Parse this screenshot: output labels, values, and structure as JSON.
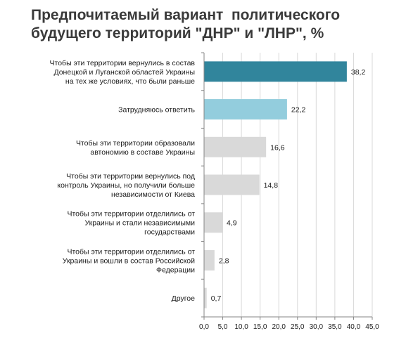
{
  "title_lines": [
    "Предпочитаемый вариант  политического",
    "будущего территорий \"ДНР\" и \"ЛНР\", %"
  ],
  "chart_data": {
    "type": "bar",
    "orientation": "horizontal",
    "title": "Предпочитаемый вариант  политического будущего территорий \"ДНР\" и \"ЛНР\", %",
    "categories": [
      [
        "Чтобы эти территории вернулись в состав",
        "Донецкой и Луганской областей Украины",
        "на тех же условиях, что были раньше"
      ],
      [
        "Затрудняюсь ответить"
      ],
      [
        "Чтобы эти территории образовали",
        "автономию в составе Украины"
      ],
      [
        "Чтобы эти территории вернулись под",
        "контроль Украины, но получили больше",
        "независимости от Киева"
      ],
      [
        "Чтобы эти территории отделились от",
        "Украины и стали независимыми",
        "государствами"
      ],
      [
        "Чтобы эти территории отделились от",
        "Украины и вошли в состав Российской",
        "Федерации"
      ],
      [
        "Другое"
      ]
    ],
    "values": [
      38.2,
      22.2,
      16.6,
      14.8,
      4.9,
      2.8,
      0.7
    ],
    "value_labels": [
      "38,2",
      "22,2",
      "16,6",
      "14,8",
      "4,9",
      "2,8",
      "0,7"
    ],
    "bar_colors": [
      "#31859c",
      "#93cddd",
      "#d9d9d9",
      "#d9d9d9",
      "#d9d9d9",
      "#d9d9d9",
      "#d9d9d9"
    ],
    "xlim": [
      0,
      45
    ],
    "xticks": [
      0,
      5,
      10,
      15,
      20,
      25,
      30,
      35,
      40,
      45
    ],
    "xtick_labels": [
      "0,0",
      "5,0",
      "10,0",
      "15,0",
      "20,0",
      "25,0",
      "30,0",
      "35,0",
      "40,0",
      "45,0"
    ],
    "grid": true,
    "legend": "none",
    "grid_color": "#d9d9d9",
    "axis_color": "#868686"
  }
}
